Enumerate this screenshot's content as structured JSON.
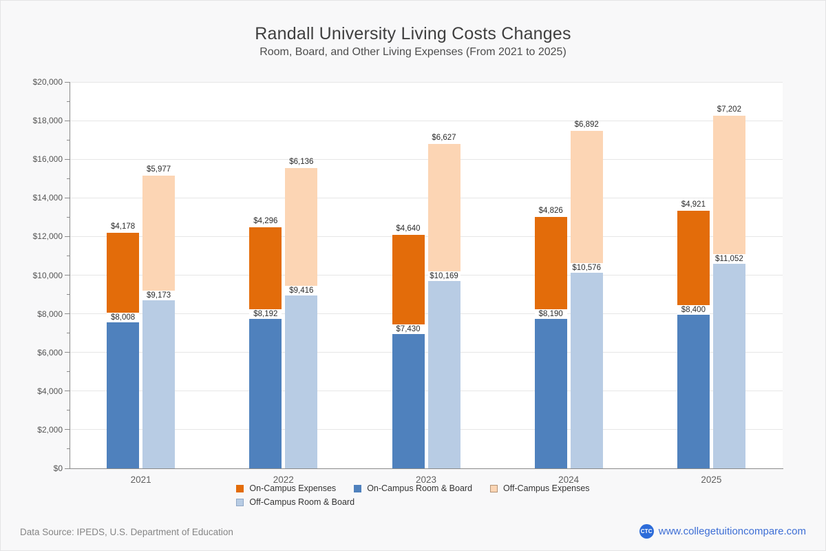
{
  "title": "Randall University Living Costs Changes",
  "subtitle": "Room, Board, and Other Living Expenses (From 2021 to 2025)",
  "chart_data": {
    "type": "bar",
    "stacked": true,
    "title": "Randall University Living Costs Changes",
    "subtitle": "Room, Board, and Other Living Expenses (From 2021 to 2025)",
    "categories": [
      "2021",
      "2022",
      "2023",
      "2024",
      "2025"
    ],
    "series": [
      {
        "name": "On-Campus Room & Board",
        "stack": "on-campus",
        "order": 0,
        "color": "#4f81bd",
        "values": [
          8008,
          8192,
          7430,
          8190,
          8400
        ]
      },
      {
        "name": "On-Campus Expenses",
        "stack": "on-campus",
        "order": 1,
        "color": "#e36c0a",
        "values": [
          4178,
          4296,
          4640,
          4826,
          4921
        ]
      },
      {
        "name": "Off-Campus Room & Board",
        "stack": "off-campus",
        "order": 0,
        "color": "#b8cce4",
        "values": [
          9173,
          9416,
          10169,
          10576,
          11052
        ]
      },
      {
        "name": "Off-Campus Expenses",
        "stack": "off-campus",
        "order": 1,
        "color": "#fcd5b4",
        "values": [
          5977,
          6136,
          6627,
          6892,
          7202
        ]
      }
    ],
    "value_prefix": "$",
    "ylim": [
      0,
      20000
    ],
    "ytick_step": 2000,
    "ytick_minor_step": 1000,
    "grid": true,
    "xlabel": "",
    "ylabel": "",
    "legend_position": "bottom"
  },
  "legend": {
    "rows": [
      [
        {
          "label": "On-Campus Expenses",
          "color": "#e36c0a",
          "border": "#e36c0a"
        },
        {
          "label": "On-Campus Room & Board",
          "color": "#4f81bd",
          "border": "#4f81bd"
        },
        {
          "label": "Off-Campus Expenses",
          "color": "#fcd5b4",
          "border": "#b39376"
        }
      ],
      [
        {
          "label": "Off-Campus Room & Board",
          "color": "#b8cce4",
          "border": "#8fa7c6"
        }
      ]
    ]
  },
  "footer": {
    "data_source": "Data Source: IPEDS, U.S. Department of Education",
    "logo_text": "CTC",
    "site_url": "www.collegetuitioncompare.com"
  },
  "colors": {
    "accent_link": "#3d6ed5",
    "logo_blue": "#2d6cd9",
    "plot_background": "#ffffff",
    "page_background": "#f8f8f9"
  }
}
